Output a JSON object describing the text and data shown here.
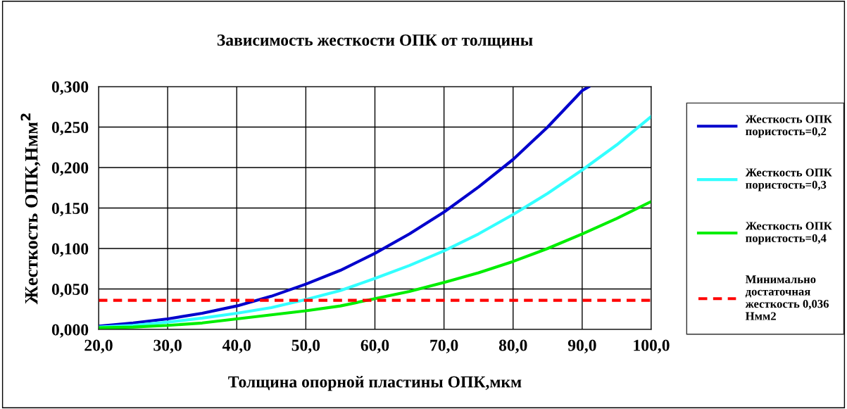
{
  "chart_data": {
    "type": "line",
    "title": "Зависимость жесткости ОПК от толщины",
    "xlabel": "Толщина опорной пластины ОПК,мкм",
    "ylabel": "Жесткость ОПК,Нмм$^{2}$",
    "series": [
      {
        "name": "Жесткость ОПК\nпористость=0,2",
        "color": "#0000cc",
        "x": [
          20,
          25,
          30,
          35,
          40,
          45,
          50,
          55,
          60,
          65,
          70,
          75,
          80,
          85,
          90,
          91
        ],
        "values": [
          0.004,
          0.008,
          0.013,
          0.02,
          0.029,
          0.041,
          0.056,
          0.073,
          0.094,
          0.118,
          0.145,
          0.176,
          0.21,
          0.25,
          0.295,
          0.3
        ]
      },
      {
        "name": "Жесткость ОПК\nпористость=0,3",
        "color": "#33ffff",
        "x": [
          20,
          25,
          30,
          35,
          40,
          45,
          50,
          55,
          60,
          65,
          70,
          75,
          80,
          85,
          90,
          95,
          100
        ],
        "values": [
          0.003,
          0.005,
          0.009,
          0.014,
          0.02,
          0.027,
          0.037,
          0.048,
          0.063,
          0.079,
          0.097,
          0.118,
          0.142,
          0.168,
          0.197,
          0.228,
          0.263
        ]
      },
      {
        "name": "Жесткость ОПК\nпористость=0,4",
        "color": "#00ee00",
        "x": [
          20,
          25,
          30,
          35,
          40,
          45,
          50,
          55,
          60,
          65,
          70,
          75,
          80,
          85,
          90,
          95,
          100
        ],
        "values": [
          0.002,
          0.003,
          0.005,
          0.008,
          0.013,
          0.018,
          0.023,
          0.029,
          0.038,
          0.047,
          0.058,
          0.07,
          0.084,
          0.1,
          0.118,
          0.137,
          0.158
        ]
      },
      {
        "name": "Минимально\nдостаточная\nжесткость 0,036\nНмм2",
        "color": "#ff0000",
        "line_style": "dashed",
        "x": [
          20,
          100
        ],
        "values": [
          0.036,
          0.036
        ]
      }
    ],
    "xlim": [
      20,
      100
    ],
    "xticks": [
      {
        "value": 20,
        "label": "20,0"
      },
      {
        "value": 30,
        "label": "30,0"
      },
      {
        "value": 40,
        "label": "40,0"
      },
      {
        "value": 50,
        "label": "50,0"
      },
      {
        "value": 60,
        "label": "60,0"
      },
      {
        "value": 70,
        "label": "70,0"
      },
      {
        "value": 80,
        "label": "80,0"
      },
      {
        "value": 90,
        "label": "90,0"
      },
      {
        "value": 100,
        "label": "100,0"
      }
    ],
    "ylim": [
      0,
      0.3
    ],
    "yticks": [
      {
        "value": 0,
        "label": "0,000"
      },
      {
        "value": 0.05,
        "label": "0,050"
      },
      {
        "value": 0.1,
        "label": "0,100"
      },
      {
        "value": 0.15,
        "label": "0,150"
      },
      {
        "value": 0.2,
        "label": "0,200"
      },
      {
        "value": 0.25,
        "label": "0,250"
      },
      {
        "value": 0.3,
        "label": "0,300"
      }
    ],
    "grid": true,
    "legend": "right",
    "marker": "none",
    "line_style": "solid"
  }
}
